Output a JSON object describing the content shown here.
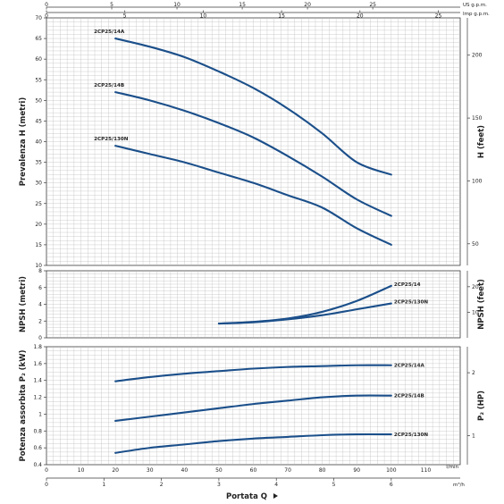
{
  "x_axis": {
    "label": "Portata Q",
    "lmin": {
      "unit": "l/min",
      "ticks": [
        "0",
        "10",
        "20",
        "30",
        "40",
        "50",
        "60",
        "70",
        "80",
        "90",
        "100",
        "110"
      ]
    },
    "m3h": {
      "unit": "m³/h",
      "ticks": [
        "0",
        "1",
        "2",
        "3",
        "4",
        "5",
        "6"
      ]
    },
    "usgpm": {
      "unit": "US g.p.m.",
      "ticks": [
        "0",
        "5",
        "10",
        "15",
        "20",
        "25"
      ]
    },
    "impgpm": {
      "unit": "Imp g.p.m.",
      "ticks": [
        "0",
        "5",
        "10",
        "15",
        "20",
        "25"
      ]
    }
  },
  "colors": {
    "curve": "#1b4f8a",
    "grid": "#b9b9b9"
  },
  "chart_data": [
    {
      "type": "line",
      "name": "head",
      "ylabel": "Prevalenza H (metri)",
      "ylabel_right": "H (feet)",
      "ylim": [
        10,
        70
      ],
      "yticks": [
        "10",
        "15",
        "20",
        "25",
        "30",
        "35",
        "40",
        "45",
        "50",
        "55",
        "60",
        "65",
        "70"
      ],
      "y2ticks": [
        "50",
        "100",
        "150",
        "200"
      ],
      "xlim": [
        0,
        120
      ],
      "series": [
        {
          "name": "2CP25/14A",
          "x": [
            20,
            30,
            40,
            50,
            60,
            70,
            80,
            90,
            100
          ],
          "y": [
            65,
            63,
            60.5,
            57,
            53,
            48,
            42,
            35,
            32
          ]
        },
        {
          "name": "2CP25/14B",
          "x": [
            20,
            30,
            40,
            50,
            60,
            70,
            80,
            90,
            100
          ],
          "y": [
            52,
            50,
            47.5,
            44.5,
            41,
            36.5,
            31.5,
            26,
            22
          ]
        },
        {
          "name": "2CP25/130N",
          "x": [
            20,
            30,
            40,
            50,
            60,
            70,
            80,
            90,
            100
          ],
          "y": [
            39,
            37,
            35,
            32.5,
            30,
            27,
            24,
            19,
            15
          ]
        }
      ]
    },
    {
      "type": "line",
      "name": "npsh",
      "ylabel": "NPSH (metri)",
      "ylabel_right": "NPSH (feet)",
      "ylim": [
        0,
        8
      ],
      "yticks": [
        "0",
        "2",
        "4",
        "6",
        "8"
      ],
      "y2ticks": [
        "10",
        "20"
      ],
      "xlim": [
        0,
        120
      ],
      "series": [
        {
          "name": "2CP25/14",
          "x": [
            50,
            60,
            70,
            80,
            90,
            100
          ],
          "y": [
            1.7,
            1.9,
            2.3,
            3.1,
            4.4,
            6.2
          ]
        },
        {
          "name": "2CP25/130N",
          "x": [
            50,
            60,
            70,
            80,
            90,
            100
          ],
          "y": [
            1.7,
            1.85,
            2.2,
            2.7,
            3.4,
            4.1
          ]
        }
      ]
    },
    {
      "type": "line",
      "name": "power",
      "ylabel": "Potenza assorbita P₂ (kW)",
      "ylabel_right": "P₂ (HP)",
      "ylim": [
        0.4,
        1.8
      ],
      "yticks": [
        "0.4",
        "0.6",
        "0.8",
        "1",
        "1.2",
        "1.4",
        "1.6",
        "1.8"
      ],
      "y2ticks": [
        "1",
        "2"
      ],
      "xlim": [
        0,
        120
      ],
      "series": [
        {
          "name": "2CP25/14A",
          "x": [
            20,
            30,
            40,
            50,
            60,
            70,
            80,
            90,
            100
          ],
          "y": [
            1.39,
            1.44,
            1.48,
            1.51,
            1.54,
            1.56,
            1.57,
            1.58,
            1.58
          ]
        },
        {
          "name": "2CP25/14B",
          "x": [
            20,
            30,
            40,
            50,
            60,
            70,
            80,
            90,
            100
          ],
          "y": [
            0.92,
            0.97,
            1.02,
            1.07,
            1.12,
            1.16,
            1.2,
            1.22,
            1.22
          ]
        },
        {
          "name": "2CP25/130N",
          "x": [
            20,
            30,
            40,
            50,
            60,
            70,
            80,
            90,
            100
          ],
          "y": [
            0.54,
            0.6,
            0.64,
            0.68,
            0.71,
            0.73,
            0.75,
            0.76,
            0.76
          ]
        }
      ]
    }
  ]
}
